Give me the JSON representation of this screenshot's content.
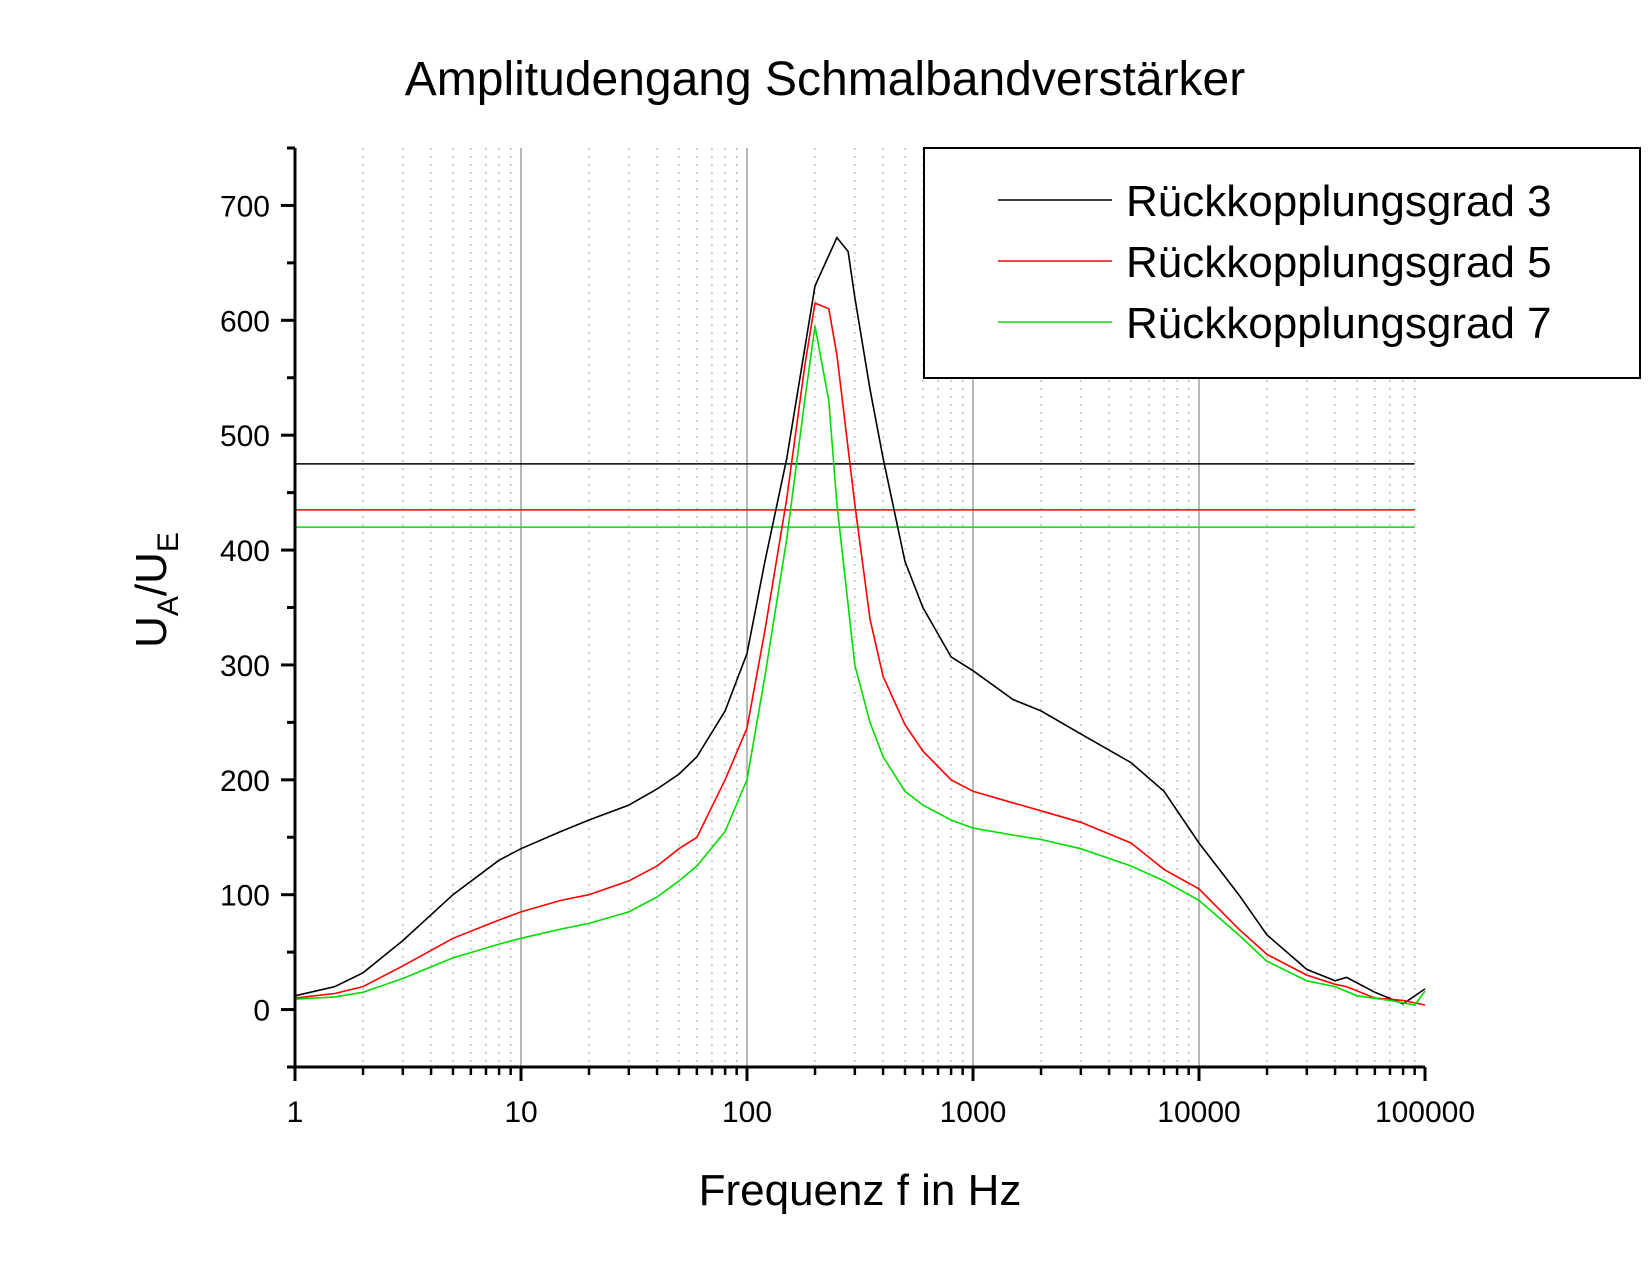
{
  "chart_data": {
    "type": "line",
    "title": "Amplitudengang  Schmalbandverstärker",
    "xlabel": "Frequenz f in Hz",
    "ylabel_main": "U",
    "ylabel_sub_a": "A",
    "ylabel_slash": "/U",
    "ylabel_sub_e": "E",
    "x_scale": "log",
    "xlim": [
      1,
      100000
    ],
    "ylim": [
      -50,
      750
    ],
    "x_ticks": [
      1,
      10,
      100,
      1000,
      10000,
      100000
    ],
    "x_tick_labels": [
      "1",
      "10",
      "100",
      "1000",
      "10000",
      "100000"
    ],
    "y_ticks": [
      0,
      100,
      200,
      300,
      400,
      500,
      600,
      700
    ],
    "y_tick_labels": [
      "0",
      "100",
      "200",
      "300",
      "400",
      "500",
      "600",
      "700"
    ],
    "grid": "major solid, minor dotted (x only)",
    "legend_position": "top-right",
    "series": [
      {
        "name": "Rückkopplungsgrad 3",
        "color": "#000000",
        "x": [
          1,
          1.5,
          2,
          3,
          5,
          8,
          10,
          15,
          20,
          30,
          40,
          50,
          60,
          80,
          100,
          120,
          150,
          200,
          250,
          280,
          300,
          350,
          400,
          500,
          600,
          800,
          1000,
          1500,
          2000,
          3000,
          5000,
          7000,
          10000,
          15000,
          20000,
          30000,
          40000,
          45000,
          60000,
          80000,
          100000
        ],
        "y": [
          12,
          20,
          32,
          60,
          100,
          130,
          140,
          155,
          165,
          178,
          192,
          205,
          220,
          260,
          310,
          390,
          480,
          630,
          672,
          660,
          620,
          540,
          480,
          390,
          350,
          307,
          295,
          270,
          260,
          240,
          215,
          190,
          145,
          100,
          65,
          35,
          25,
          28,
          15,
          5,
          18
        ],
        "hline": 475
      },
      {
        "name": "Rückkopplungsgrad 5",
        "color": "#ff0000",
        "x": [
          1,
          1.5,
          2,
          3,
          5,
          8,
          10,
          15,
          20,
          30,
          40,
          50,
          60,
          80,
          100,
          120,
          150,
          180,
          200,
          230,
          250,
          300,
          350,
          400,
          500,
          600,
          800,
          1000,
          1500,
          2000,
          3000,
          5000,
          7000,
          10000,
          15000,
          20000,
          30000,
          40000,
          45000,
          60000,
          80000,
          100000
        ],
        "y": [
          10,
          14,
          20,
          38,
          62,
          78,
          85,
          95,
          100,
          112,
          125,
          140,
          150,
          200,
          245,
          330,
          445,
          560,
          615,
          610,
          570,
          440,
          340,
          290,
          248,
          225,
          200,
          190,
          180,
          173,
          163,
          145,
          122,
          105,
          70,
          48,
          30,
          22,
          20,
          10,
          8,
          4
        ],
        "hline": 435
      },
      {
        "name": "Rückkopplungsgrad 7",
        "color": "#00dd00",
        "x": [
          1,
          1.5,
          2,
          3,
          5,
          8,
          10,
          15,
          20,
          30,
          40,
          50,
          60,
          80,
          100,
          120,
          150,
          180,
          200,
          230,
          250,
          300,
          350,
          400,
          500,
          600,
          800,
          1000,
          1500,
          2000,
          3000,
          5000,
          7000,
          10000,
          15000,
          20000,
          30000,
          40000,
          50000,
          70000,
          90000,
          100000
        ],
        "y": [
          9,
          11,
          15,
          27,
          45,
          57,
          62,
          70,
          75,
          85,
          98,
          112,
          125,
          155,
          200,
          290,
          410,
          530,
          595,
          530,
          440,
          300,
          250,
          220,
          190,
          178,
          165,
          158,
          152,
          148,
          140,
          125,
          112,
          95,
          65,
          42,
          25,
          20,
          12,
          8,
          4,
          16
        ],
        "hline": 420
      }
    ]
  }
}
